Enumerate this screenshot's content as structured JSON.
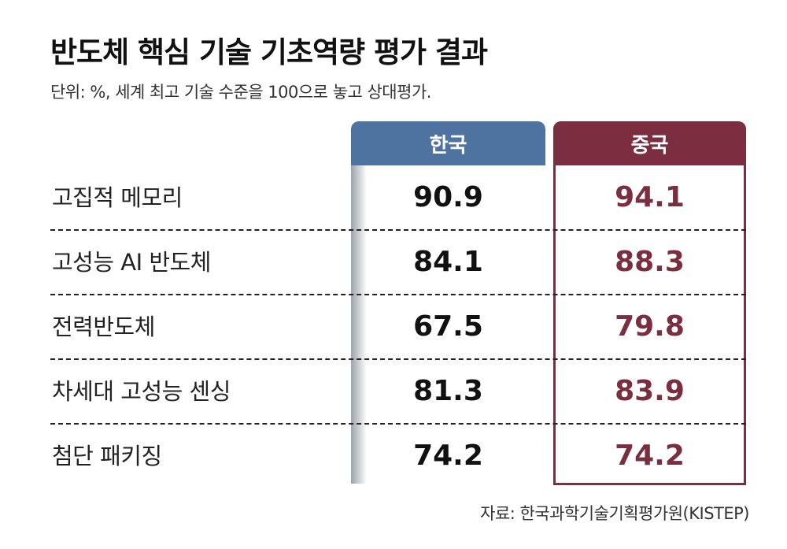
{
  "chart_data": {
    "type": "table",
    "title": "반도체 핵심 기술 기초역량 평가 결과",
    "subtitle": "단위: %, 세계 최고 기술 수준을 100으로 놓고 상대평가.",
    "columns": [
      "한국",
      "중국"
    ],
    "categories": [
      "고집적 메모리",
      "고성능 AI 반도체",
      "전력반도체",
      "차세대 고성능 센싱",
      "첨단 패키징"
    ],
    "series": [
      {
        "name": "한국",
        "values": [
          "90.9",
          "84.1",
          "67.5",
          "81.3",
          "74.2"
        ]
      },
      {
        "name": "중국",
        "values": [
          "94.1",
          "88.3",
          "79.8",
          "83.9",
          "74.2"
        ]
      }
    ],
    "source": "자료: 한국과학기술기획평가원(KISTEP)"
  },
  "colors": {
    "korea": "#4f73a1",
    "china": "#7a2e3f"
  }
}
